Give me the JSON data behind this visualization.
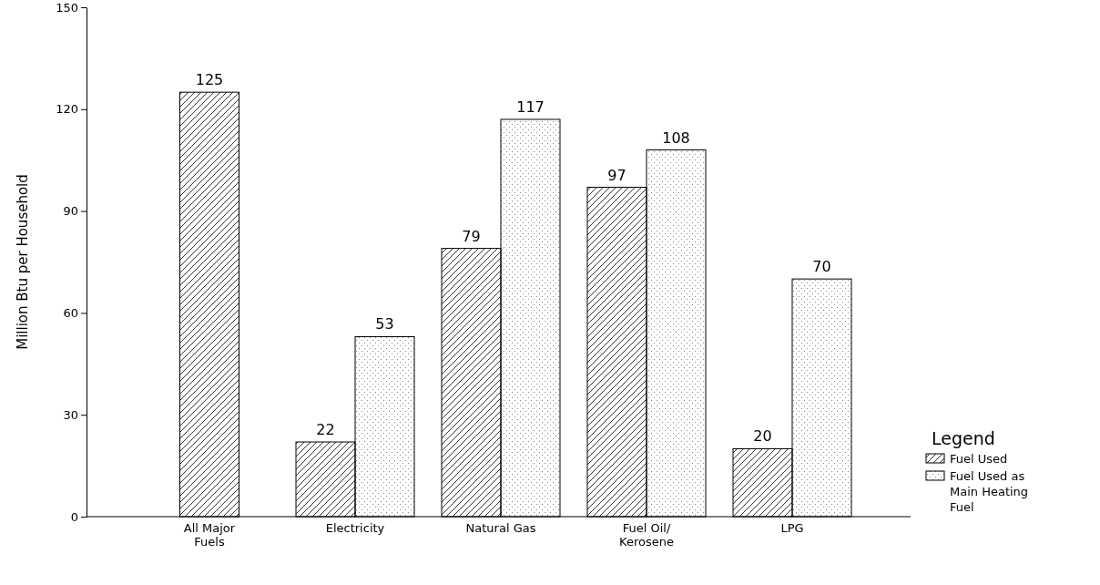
{
  "chart_data": {
    "type": "bar",
    "ylabel": "Million Btu per Household",
    "legend_title": "Legend",
    "categories": [
      "All Major Fuels",
      "Electricity",
      "Natural Gas",
      "Fuel Oil/ Kerosene",
      "LPG"
    ],
    "series": [
      {
        "name": "Fuel Used",
        "color": "#000000",
        "values": [
          125,
          22,
          79,
          97,
          20
        ]
      },
      {
        "name": "Fuel Used as Main Heating Fuel",
        "color": "#000000",
        "values": [
          null,
          53,
          117,
          108,
          70
        ]
      }
    ],
    "ylim": [
      0,
      150
    ],
    "yticks": [
      0,
      30,
      60,
      90,
      120,
      150
    ],
    "data_labels": true,
    "legend": "right",
    "grid": false
  }
}
